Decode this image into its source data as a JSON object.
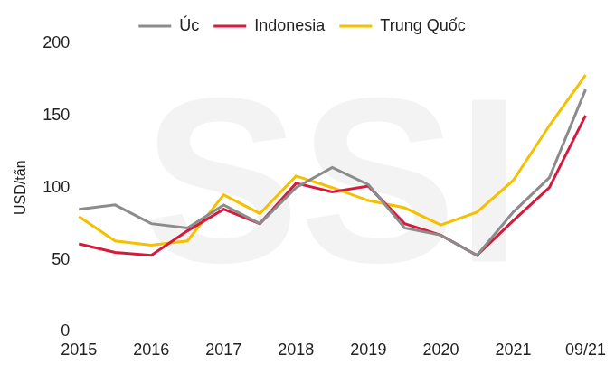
{
  "chart_data": {
    "type": "line",
    "y_label": "USD/tấn",
    "annotations": [
      "SSI"
    ],
    "categories": [
      "2015",
      null,
      "2016",
      null,
      "2017",
      null,
      "2018",
      null,
      "2019",
      null,
      "2020",
      null,
      "2021",
      null,
      "09/21"
    ],
    "series": [
      {
        "name": "Úc",
        "color": "#8c8c8c",
        "values": [
          85,
          88,
          75,
          72,
          88,
          75,
          100,
          114,
          102,
          72,
          67,
          53,
          83,
          107,
          168
        ]
      },
      {
        "name": "Indonesia",
        "color": "#d71a3c",
        "values": [
          61,
          55,
          53,
          70,
          85,
          75,
          103,
          97,
          101,
          75,
          67,
          53,
          77,
          100,
          150
        ]
      },
      {
        "name": "Trung Quốc",
        "color": "#f5c000",
        "values": [
          80,
          63,
          60,
          63,
          95,
          82,
          108,
          100,
          91,
          86,
          74,
          83,
          105,
          143,
          178
        ]
      }
    ],
    "ylim": [
      0,
      200
    ],
    "yticks": [
      0,
      50,
      100,
      150,
      200
    ],
    "grid": false,
    "legend": "top"
  }
}
